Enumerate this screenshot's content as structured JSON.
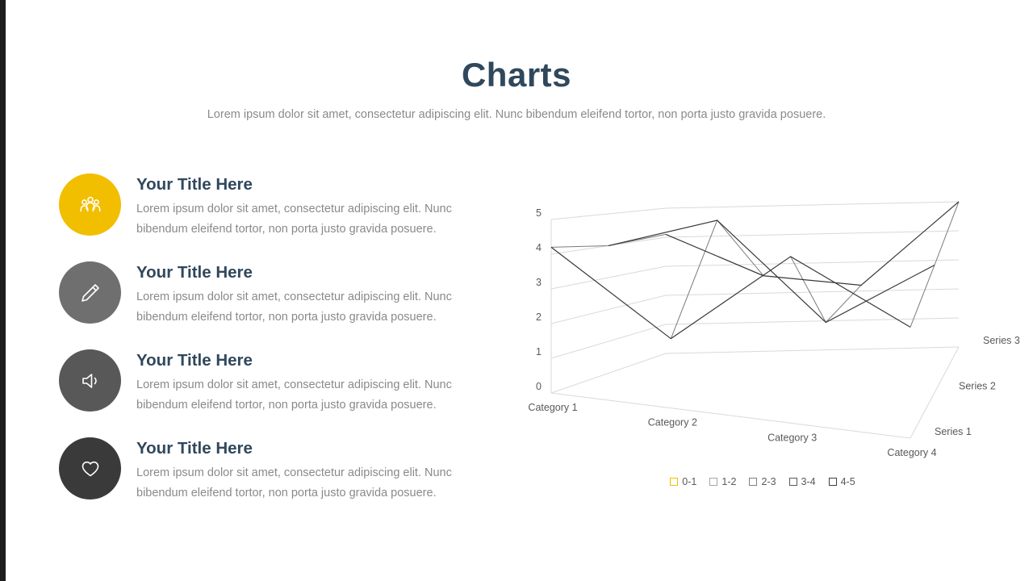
{
  "slide": {
    "title": "Charts",
    "subtitle": "Lorem ipsum dolor sit amet, consectetur adipiscing elit. Nunc bibendum eleifend tortor, non porta justo gravida posuere.",
    "title_color": "#30485c",
    "accent_bar_color": "#1d1d1d"
  },
  "features": [
    {
      "icon": "people-icon",
      "color": "#f2be00",
      "title": "Your Title Here",
      "description": "Lorem ipsum dolor sit amet, consectetur adipiscing elit. Nunc bibendum eleifend tortor, non porta justo gravida posuere."
    },
    {
      "icon": "pencil-icon",
      "color": "#6f6f6f",
      "title": "Your Title Here",
      "description": "Lorem ipsum dolor sit amet, consectetur adipiscing elit. Nunc bibendum eleifend tortor, non porta justo gravida posuere."
    },
    {
      "icon": "speaker-icon",
      "color": "#585858",
      "title": "Your Title Here",
      "description": "Lorem ipsum dolor sit amet, consectetur adipiscing elit. Nunc bibendum eleifend tortor, non porta justo gravida posuere."
    },
    {
      "icon": "heart-icon",
      "color": "#3a3a3a",
      "title": "Your Title Here",
      "description": "Lorem ipsum dolor sit amet, consectetur adipiscing elit. Nunc bibendum eleifend tortor, non porta justo gravida posuere."
    }
  ],
  "chart_data": {
    "type": "surface-wireframe-3d",
    "categories": [
      "Category 1",
      "Category 2",
      "Category 3",
      "Category 4"
    ],
    "series": [
      {
        "name": "Series 1",
        "values": [
          4.2,
          2.0,
          4.8,
          3.2
        ]
      },
      {
        "name": "Series 2",
        "values": [
          4.0,
          5.0,
          2.0,
          4.0
        ]
      },
      {
        "name": "Series 3",
        "values": [
          4.1,
          2.6,
          2.2,
          5.0
        ]
      }
    ],
    "value_axis": {
      "min": 0,
      "max": 5,
      "step": 1,
      "ticks": [
        "0",
        "1",
        "2",
        "3",
        "4",
        "5"
      ]
    },
    "legend_position": "bottom",
    "grid": true,
    "legend": [
      {
        "label": "0-1",
        "color": "#f2be00"
      },
      {
        "label": "1-2",
        "color": "#a6a6a6"
      },
      {
        "label": "2-3",
        "color": "#7f7f7f"
      },
      {
        "label": "3-4",
        "color": "#595959"
      },
      {
        "label": "4-5",
        "color": "#3f3f3f"
      }
    ]
  }
}
